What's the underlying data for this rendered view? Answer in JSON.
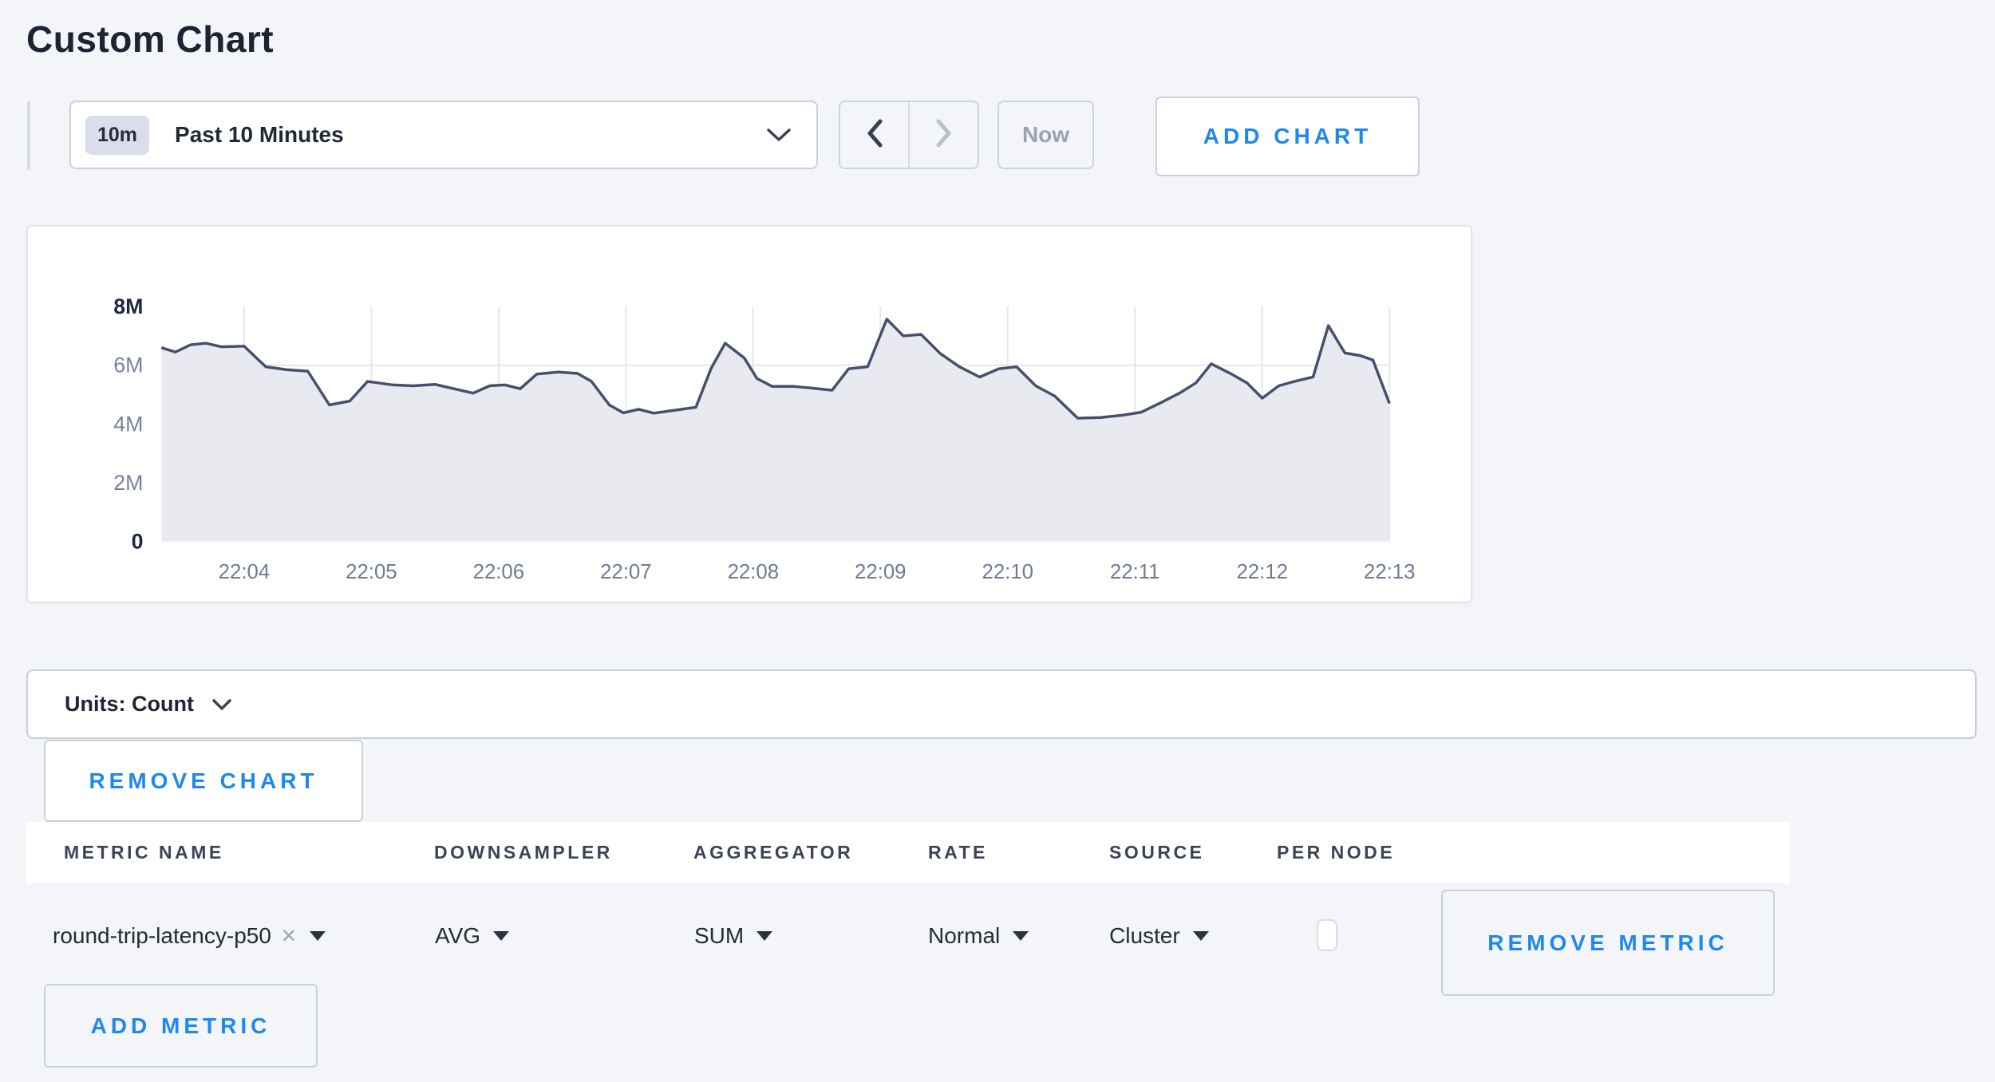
{
  "page": {
    "title": "Custom Chart"
  },
  "colors": {
    "accent_blue": "#1e88f0",
    "page_background": "#f4f5f9",
    "card_background": "#ffffff",
    "dark_text": "#1c2433",
    "muted_text": "#9aa2b2"
  },
  "toolbar": {
    "range_badge": "10m",
    "range_label": "Past 10 Minutes",
    "now_label": "Now",
    "add_chart_label": "ADD CHART"
  },
  "units_bar": {
    "label": "Units: Count"
  },
  "buttons": {
    "remove_chart": "REMOVE CHART",
    "remove_metric": "REMOVE METRIC",
    "add_metric": "ADD METRIC"
  },
  "metrics_table": {
    "columns": [
      "METRIC NAME",
      "DOWNSAMPLER",
      "AGGREGATOR",
      "RATE",
      "SOURCE",
      "PER NODE"
    ],
    "rows": [
      {
        "metric_name": "round-trip-latency-p50",
        "downsampler": "AVG",
        "aggregator": "SUM",
        "rate": "Normal",
        "source": "Cluster",
        "per_node_checked": false
      }
    ]
  },
  "chart_data": {
    "type": "area",
    "title": "",
    "xlabel": "",
    "ylabel": "",
    "grid": true,
    "legend": "none",
    "ylim_millions": [
      0,
      8
    ],
    "y_tick_values_millions": [
      0,
      2,
      4,
      6,
      8
    ],
    "y_tick_labels": [
      "0",
      "2M",
      "4M",
      "6M",
      "8M"
    ],
    "x_ticks": [
      "22:04",
      "22:05",
      "22:06",
      "22:07",
      "22:08",
      "22:09",
      "22:10",
      "22:11",
      "22:12",
      "22:13"
    ],
    "x_gridline_minutes": [
      1,
      2,
      3,
      4,
      5,
      6,
      7,
      8,
      9,
      10
    ],
    "x_domain_minutes_after_22_03": [
      0.35,
      10.0
    ],
    "line_color": "#47506b",
    "fill_color": "#e8eaf0",
    "gridline_color": "#e4e7ee",
    "axis_label_color_strong": "#1e2742",
    "axis_label_color_muted": "#76819b",
    "x_tick_color": "#6e7b96",
    "series": [
      {
        "name": "round-trip-latency-p50",
        "unit": "Count",
        "points_minutes_value_millions": [
          [
            0.35,
            6.6
          ],
          [
            0.46,
            6.45
          ],
          [
            0.58,
            6.7
          ],
          [
            0.7,
            6.75
          ],
          [
            0.82,
            6.63
          ],
          [
            1.0,
            6.65
          ],
          [
            1.17,
            5.95
          ],
          [
            1.33,
            5.85
          ],
          [
            1.5,
            5.8
          ],
          [
            1.67,
            4.65
          ],
          [
            1.83,
            4.78
          ],
          [
            1.97,
            5.45
          ],
          [
            2.17,
            5.33
          ],
          [
            2.33,
            5.3
          ],
          [
            2.5,
            5.35
          ],
          [
            2.67,
            5.18
          ],
          [
            2.8,
            5.05
          ],
          [
            2.93,
            5.3
          ],
          [
            3.05,
            5.33
          ],
          [
            3.17,
            5.2
          ],
          [
            3.3,
            5.7
          ],
          [
            3.47,
            5.77
          ],
          [
            3.62,
            5.72
          ],
          [
            3.73,
            5.45
          ],
          [
            3.87,
            4.65
          ],
          [
            3.98,
            4.38
          ],
          [
            4.1,
            4.5
          ],
          [
            4.22,
            4.37
          ],
          [
            4.4,
            4.48
          ],
          [
            4.55,
            4.57
          ],
          [
            4.67,
            5.9
          ],
          [
            4.78,
            6.75
          ],
          [
            4.93,
            6.25
          ],
          [
            5.03,
            5.55
          ],
          [
            5.15,
            5.28
          ],
          [
            5.32,
            5.28
          ],
          [
            5.47,
            5.22
          ],
          [
            5.62,
            5.15
          ],
          [
            5.75,
            5.88
          ],
          [
            5.9,
            5.95
          ],
          [
            6.05,
            7.57
          ],
          [
            6.18,
            7.0
          ],
          [
            6.32,
            7.05
          ],
          [
            6.47,
            6.4
          ],
          [
            6.62,
            5.95
          ],
          [
            6.78,
            5.6
          ],
          [
            6.93,
            5.88
          ],
          [
            7.07,
            5.95
          ],
          [
            7.22,
            5.3
          ],
          [
            7.37,
            4.95
          ],
          [
            7.55,
            4.2
          ],
          [
            7.73,
            4.22
          ],
          [
            7.9,
            4.3
          ],
          [
            8.05,
            4.4
          ],
          [
            8.2,
            4.72
          ],
          [
            8.35,
            5.05
          ],
          [
            8.48,
            5.4
          ],
          [
            8.6,
            6.05
          ],
          [
            8.75,
            5.72
          ],
          [
            8.88,
            5.4
          ],
          [
            9.0,
            4.88
          ],
          [
            9.13,
            5.3
          ],
          [
            9.27,
            5.47
          ],
          [
            9.4,
            5.6
          ],
          [
            9.52,
            7.35
          ],
          [
            9.65,
            6.42
          ],
          [
            9.77,
            6.33
          ],
          [
            9.87,
            6.18
          ],
          [
            10.0,
            4.7
          ]
        ]
      }
    ]
  }
}
